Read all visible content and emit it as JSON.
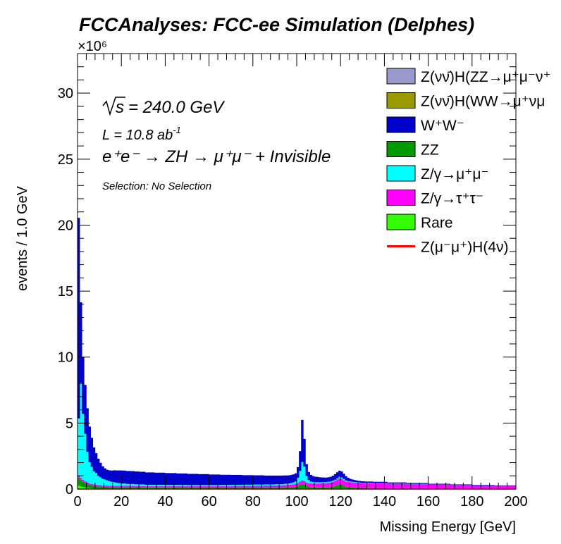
{
  "header": {
    "title": "FCCAnalyses: FCC-ee Simulation (Delphes)"
  },
  "chart_data": {
    "type": "bar",
    "xlabel": "Missing Energy [GeV]",
    "ylabel": "events / 1.0 GeV",
    "y_multiplier": "×10⁶",
    "xlim": [
      0,
      200
    ],
    "ylim": [
      0,
      33
    ],
    "x_ticks": [
      0,
      20,
      40,
      60,
      80,
      100,
      120,
      140,
      160,
      180,
      200
    ],
    "y_ticks": [
      0,
      5,
      10,
      15,
      20,
      25,
      30
    ],
    "annotations": {
      "sqrt_s": "= 240.0 GeV",
      "lumi": "L = 10.8 ab",
      "lumi_exp": "-1",
      "process": "e⁺e⁻ → ZH → μ⁺μ⁻ + Invisible",
      "selection": "Selection: No Selection"
    },
    "legend_position": "top-right",
    "legend": [
      {
        "label": "Z(νν̄)H(ZZ→μ⁺μ⁻ν⁺",
        "color": "#9999cc",
        "style": "box"
      },
      {
        "label": "Z(νν̄)H(WW→μ⁺νμ",
        "color": "#999900",
        "style": "box"
      },
      {
        "label": "W⁺W⁻",
        "color": "#0000cc",
        "style": "box"
      },
      {
        "label": "ZZ",
        "color": "#009900",
        "style": "box"
      },
      {
        "label": "Z/γ→μ⁺μ⁻",
        "color": "#00ffff",
        "style": "box"
      },
      {
        "label": "Z/γ→τ⁺τ⁻",
        "color": "#ff00ff",
        "style": "box"
      },
      {
        "label": "Rare",
        "color": "#33ff00",
        "style": "box"
      },
      {
        "label": "Z(μ⁻μ⁺)H(4ν)",
        "color": "#ff0000",
        "style": "line"
      }
    ],
    "stack_order": [
      "Rare",
      "ZZ",
      "Z/γ→τ⁺τ⁻",
      "Z/γ→μ⁺μ⁻",
      "W⁺W⁻"
    ],
    "x": [
      0.5,
      1.5,
      2.5,
      3.5,
      4.5,
      5.5,
      6.5,
      7.5,
      8.5,
      9.5,
      10.5,
      11.5,
      12.5,
      13.5,
      14.5,
      15.5,
      16.5,
      17.5,
      18.5,
      19.5,
      21,
      23,
      25,
      27,
      29,
      32.5,
      37.5,
      42.5,
      47.5,
      52.5,
      57.5,
      62.5,
      67.5,
      72.5,
      77.5,
      82.5,
      87.5,
      92.5,
      95.5,
      96.5,
      97.5,
      98.5,
      99.5,
      100.5,
      101.5,
      102.5,
      103.5,
      104.5,
      105.5,
      106.5,
      107.5,
      108.5,
      109.5,
      110.5,
      111.5,
      112.5,
      113.5,
      114.5,
      115.5,
      116.5,
      117.5,
      118.5,
      119.5,
      120.5,
      121.5,
      122.5,
      123.5,
      124.5,
      125.5,
      126.5,
      127.5,
      128.5,
      129.5,
      132,
      137.5,
      145,
      155,
      165,
      175,
      185,
      195
    ],
    "series": [
      {
        "name": "Rare",
        "values": [
          0.25,
          0.2,
          0.15,
          0.12,
          0.1,
          0.08,
          0.06,
          0.05,
          0.04,
          0.03,
          0.03,
          0.02,
          0.02,
          0.02,
          0.02,
          0.02,
          0.02,
          0.02,
          0.02,
          0.02,
          0.02,
          0.02,
          0.02,
          0.02,
          0.02,
          0.02,
          0.02,
          0.02,
          0.02,
          0.02,
          0.02,
          0.02,
          0.02,
          0.02,
          0.02,
          0.02,
          0.02,
          0.02,
          0.02,
          0.02,
          0.02,
          0.02,
          0.02,
          0.02,
          0.02,
          0.03,
          0.03,
          0.02,
          0.02,
          0.02,
          0.02,
          0.02,
          0.02,
          0.02,
          0.02,
          0.02,
          0.02,
          0.02,
          0.02,
          0.02,
          0.02,
          0.02,
          0.02,
          0.02,
          0.02,
          0.02,
          0.02,
          0.02,
          0.02,
          0.02,
          0.02,
          0.02,
          0.02,
          0.02,
          0.02,
          0.02,
          0.02,
          0.01,
          0.01,
          0.01,
          0.01
        ]
      },
      {
        "name": "ZZ",
        "values": [
          0.6,
          0.5,
          0.4,
          0.35,
          0.3,
          0.25,
          0.22,
          0.2,
          0.18,
          0.17,
          0.16,
          0.15,
          0.15,
          0.14,
          0.13,
          0.13,
          0.12,
          0.12,
          0.12,
          0.12,
          0.12,
          0.12,
          0.12,
          0.11,
          0.11,
          0.1,
          0.1,
          0.1,
          0.09,
          0.09,
          0.08,
          0.08,
          0.08,
          0.08,
          0.08,
          0.08,
          0.08,
          0.08,
          0.09,
          0.1,
          0.11,
          0.12,
          0.14,
          0.2,
          0.3,
          0.35,
          0.3,
          0.2,
          0.14,
          0.12,
          0.1,
          0.1,
          0.1,
          0.1,
          0.1,
          0.1,
          0.1,
          0.11,
          0.12,
          0.15,
          0.2,
          0.28,
          0.35,
          0.3,
          0.22,
          0.15,
          0.12,
          0.1,
          0.09,
          0.08,
          0.07,
          0.06,
          0.06,
          0.05,
          0.05,
          0.04,
          0.04,
          0.03,
          0.03,
          0.02,
          0.02
        ]
      },
      {
        "name": "Z/γ→τ⁺τ⁻",
        "values": [
          0.2,
          0.15,
          0.15,
          0.12,
          0.12,
          0.1,
          0.1,
          0.1,
          0.1,
          0.1,
          0.1,
          0.1,
          0.1,
          0.1,
          0.1,
          0.1,
          0.1,
          0.1,
          0.1,
          0.1,
          0.1,
          0.1,
          0.1,
          0.1,
          0.1,
          0.1,
          0.1,
          0.1,
          0.11,
          0.11,
          0.12,
          0.12,
          0.13,
          0.14,
          0.15,
          0.16,
          0.17,
          0.18,
          0.19,
          0.2,
          0.21,
          0.22,
          0.23,
          0.24,
          0.25,
          0.26,
          0.27,
          0.27,
          0.28,
          0.28,
          0.29,
          0.29,
          0.3,
          0.3,
          0.31,
          0.32,
          0.33,
          0.34,
          0.36,
          0.38,
          0.4,
          0.42,
          0.44,
          0.44,
          0.42,
          0.4,
          0.4,
          0.4,
          0.39,
          0.39,
          0.38,
          0.38,
          0.37,
          0.37,
          0.36,
          0.34,
          0.31,
          0.28,
          0.25,
          0.22,
          0.2
        ]
      },
      {
        "name": "Z/γ→μ⁺μ⁻",
        "values": [
          4.3,
          7.2,
          5.0,
          3.6,
          2.3,
          1.6,
          1.3,
          1.0,
          0.9,
          0.7,
          0.6,
          0.5,
          0.45,
          0.4,
          0.35,
          0.3,
          0.28,
          0.25,
          0.22,
          0.2,
          0.18,
          0.15,
          0.14,
          0.13,
          0.12,
          0.1,
          0.1,
          0.09,
          0.09,
          0.08,
          0.08,
          0.08,
          0.08,
          0.08,
          0.08,
          0.08,
          0.08,
          0.09,
          0.1,
          0.1,
          0.12,
          0.15,
          0.2,
          0.4,
          0.8,
          1.4,
          1.1,
          0.5,
          0.25,
          0.15,
          0.12,
          0.1,
          0.1,
          0.09,
          0.09,
          0.08,
          0.08,
          0.08,
          0.08,
          0.08,
          0.09,
          0.1,
          0.12,
          0.12,
          0.1,
          0.08,
          0.06,
          0.05,
          0.05,
          0.04,
          0.04,
          0.04,
          0.03,
          0.03,
          0.03,
          0.02,
          0.02,
          0.02,
          0.01,
          0.01,
          0.01
        ]
      },
      {
        "name": "W⁺W⁻",
        "values": [
          15.2,
          6.1,
          4.3,
          3.7,
          3.3,
          2.7,
          2.2,
          1.8,
          1.5,
          1.3,
          1.1,
          0.95,
          0.85,
          0.8,
          0.82,
          0.85,
          0.9,
          0.92,
          0.95,
          0.97,
          0.98,
          0.98,
          0.98,
          0.97,
          0.96,
          0.94,
          0.92,
          0.9,
          0.87,
          0.85,
          0.83,
          0.8,
          0.77,
          0.75,
          0.72,
          0.7,
          0.67,
          0.65,
          0.63,
          0.62,
          0.61,
          0.6,
          0.6,
          0.8,
          1.5,
          3.2,
          2.1,
          0.9,
          0.6,
          0.5,
          0.45,
          0.42,
          0.4,
          0.38,
          0.36,
          0.35,
          0.34,
          0.34,
          0.35,
          0.38,
          0.42,
          0.45,
          0.46,
          0.45,
          0.4,
          0.32,
          0.25,
          0.2,
          0.17,
          0.15,
          0.13,
          0.12,
          0.11,
          0.1,
          0.09,
          0.08,
          0.07,
          0.06,
          0.05,
          0.05,
          0.04
        ]
      }
    ],
    "signal": {
      "name": "Z(μ⁻μ⁺)H(4ν)",
      "values": [
        0.001,
        0.001,
        0.001,
        0.001,
        0.001,
        0.001,
        0.001,
        0.001,
        0.001,
        0.001,
        0.001,
        0.001,
        0.001,
        0.001,
        0.001,
        0.001,
        0.001,
        0.001,
        0.001,
        0.001,
        0.001,
        0.001,
        0.001,
        0.001,
        0.001,
        0.001,
        0.001,
        0.001,
        0.001,
        0.001,
        0.001,
        0.001,
        0.001,
        0.001,
        0.001,
        0.001,
        0.001,
        0.001,
        0.001,
        0.001,
        0.001,
        0.001,
        0.001,
        0.001,
        0.001,
        0.001,
        0.001,
        0.001,
        0.001,
        0.001,
        0.001,
        0.001,
        0.001,
        0.001,
        0.001,
        0.001,
        0.001,
        0.001,
        0.001,
        0.001,
        0.002,
        0.002,
        0.003,
        0.003,
        0.002,
        0.002,
        0.001,
        0.001,
        0.001,
        0.001,
        0.001,
        0.001,
        0.001,
        0.001,
        0.001,
        0.001,
        0.001,
        0.001,
        0.001,
        0.001,
        0.001
      ]
    }
  }
}
